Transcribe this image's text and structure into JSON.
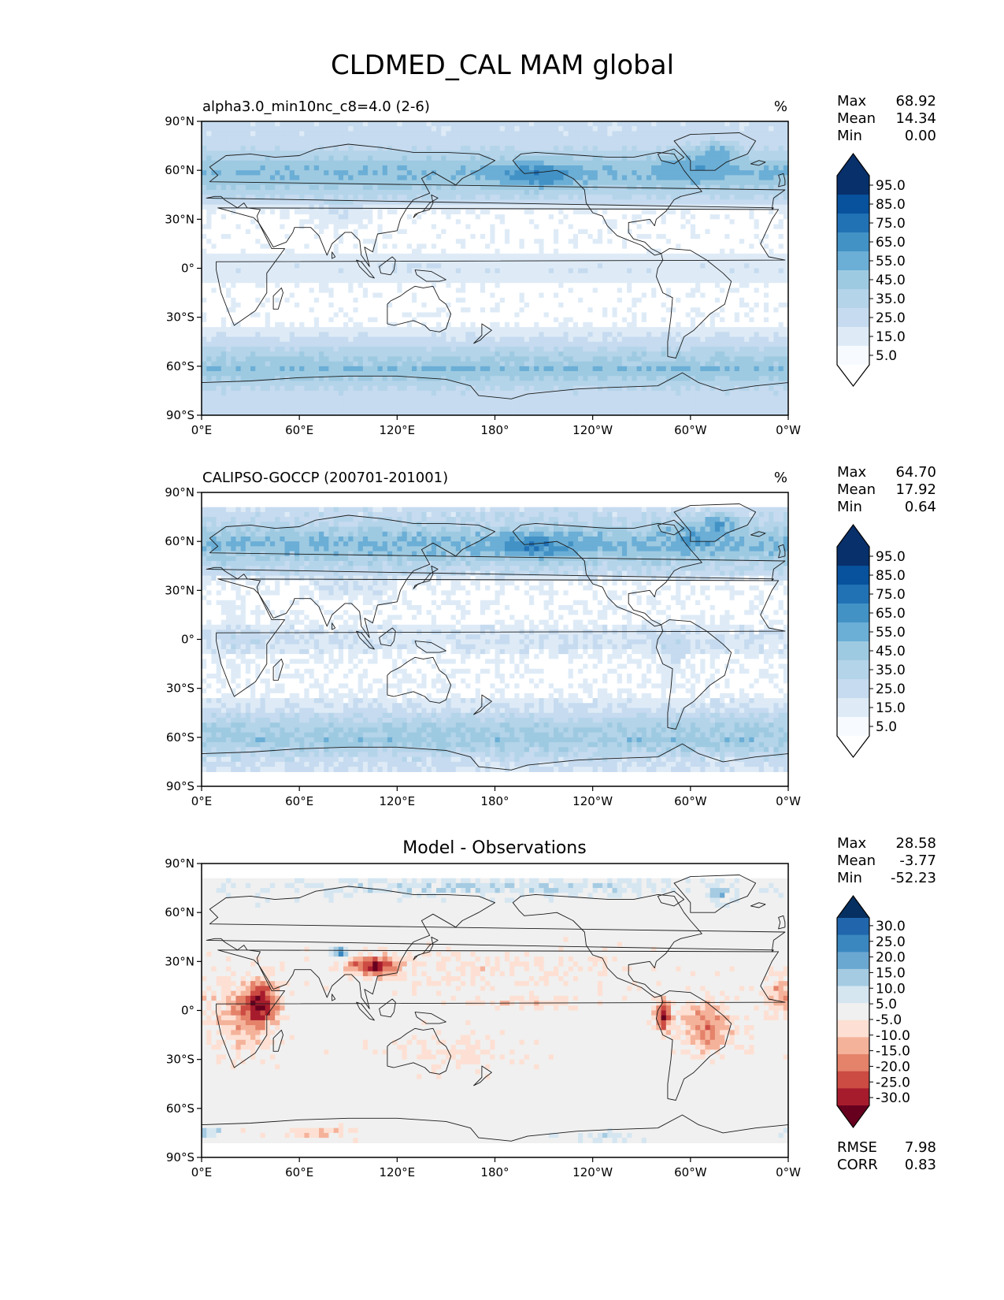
{
  "title": "CLDMED_CAL MAM global",
  "axes": {
    "lat_ticks": [
      "90°N",
      "60°N",
      "30°N",
      "0°",
      "30°S",
      "60°S",
      "90°S"
    ],
    "lon_ticks": [
      "0°E",
      "60°E",
      "120°E",
      "180°",
      "120°W",
      "60°W",
      "0°W"
    ]
  },
  "panels": [
    {
      "title_left": "alpha3.0_min10nc_c8=4.0 (2-6)",
      "title_center": "",
      "units": "%",
      "stats": [
        {
          "label": "Max",
          "value": "68.92"
        },
        {
          "label": "Mean",
          "value": "14.34"
        },
        {
          "label": "Min",
          "value": "0.00"
        }
      ],
      "colorbar": {
        "labels": [
          "95.0",
          "85.0",
          "75.0",
          "65.0",
          "55.0",
          "45.0",
          "35.0",
          "25.0",
          "15.0",
          "5.0"
        ],
        "colors": [
          "#08306b",
          "#08519c",
          "#2171b5",
          "#4292c6",
          "#6baed6",
          "#9ecae1",
          "#b4d4ea",
          "#c6dbef",
          "#deebf7",
          "#f7fbff"
        ],
        "bottom_color": "#ffffff",
        "top_color": "#08306b"
      },
      "field_kind": "sequential"
    },
    {
      "title_left": "CALIPSO-GOCCP (200701-201001)",
      "title_center": "",
      "units": "%",
      "stats": [
        {
          "label": "Max",
          "value": "64.70"
        },
        {
          "label": "Mean",
          "value": "17.92"
        },
        {
          "label": "Min",
          "value": "0.64"
        }
      ],
      "colorbar": {
        "labels": [
          "95.0",
          "85.0",
          "75.0",
          "65.0",
          "55.0",
          "45.0",
          "35.0",
          "25.0",
          "15.0",
          "5.0"
        ],
        "colors": [
          "#08306b",
          "#08519c",
          "#2171b5",
          "#4292c6",
          "#6baed6",
          "#9ecae1",
          "#b4d4ea",
          "#c6dbef",
          "#deebf7",
          "#f7fbff"
        ],
        "bottom_color": "#ffffff",
        "top_color": "#08306b"
      },
      "field_kind": "sequential"
    },
    {
      "title_left": "",
      "title_center": "Model - Observations",
      "units": "",
      "stats": [
        {
          "label": "Max",
          "value": "28.58"
        },
        {
          "label": "Mean",
          "value": "-3.77"
        },
        {
          "label": "Min",
          "value": "-52.23"
        }
      ],
      "colorbar": {
        "labels": [
          "30.0",
          "25.0",
          "20.0",
          "15.0",
          "10.0",
          "5.0",
          "-5.0",
          "-10.0",
          "-15.0",
          "-20.0",
          "-25.0",
          "-30.0"
        ],
        "colors": [
          "#2166ac",
          "#3a87c0",
          "#6aa8d1",
          "#a5cbe2",
          "#d5e6f1",
          "#f0f0f0",
          "#fde0d3",
          "#f5b29a",
          "#e4826a",
          "#cc4b43",
          "#a71c2d"
        ],
        "bottom_color": "#67001f",
        "top_color": "#053061"
      },
      "field_kind": "diverging",
      "extra_stats": [
        {
          "label": "RMSE",
          "value": "7.98"
        },
        {
          "label": "CORR",
          "value": "0.83"
        }
      ]
    }
  ]
}
